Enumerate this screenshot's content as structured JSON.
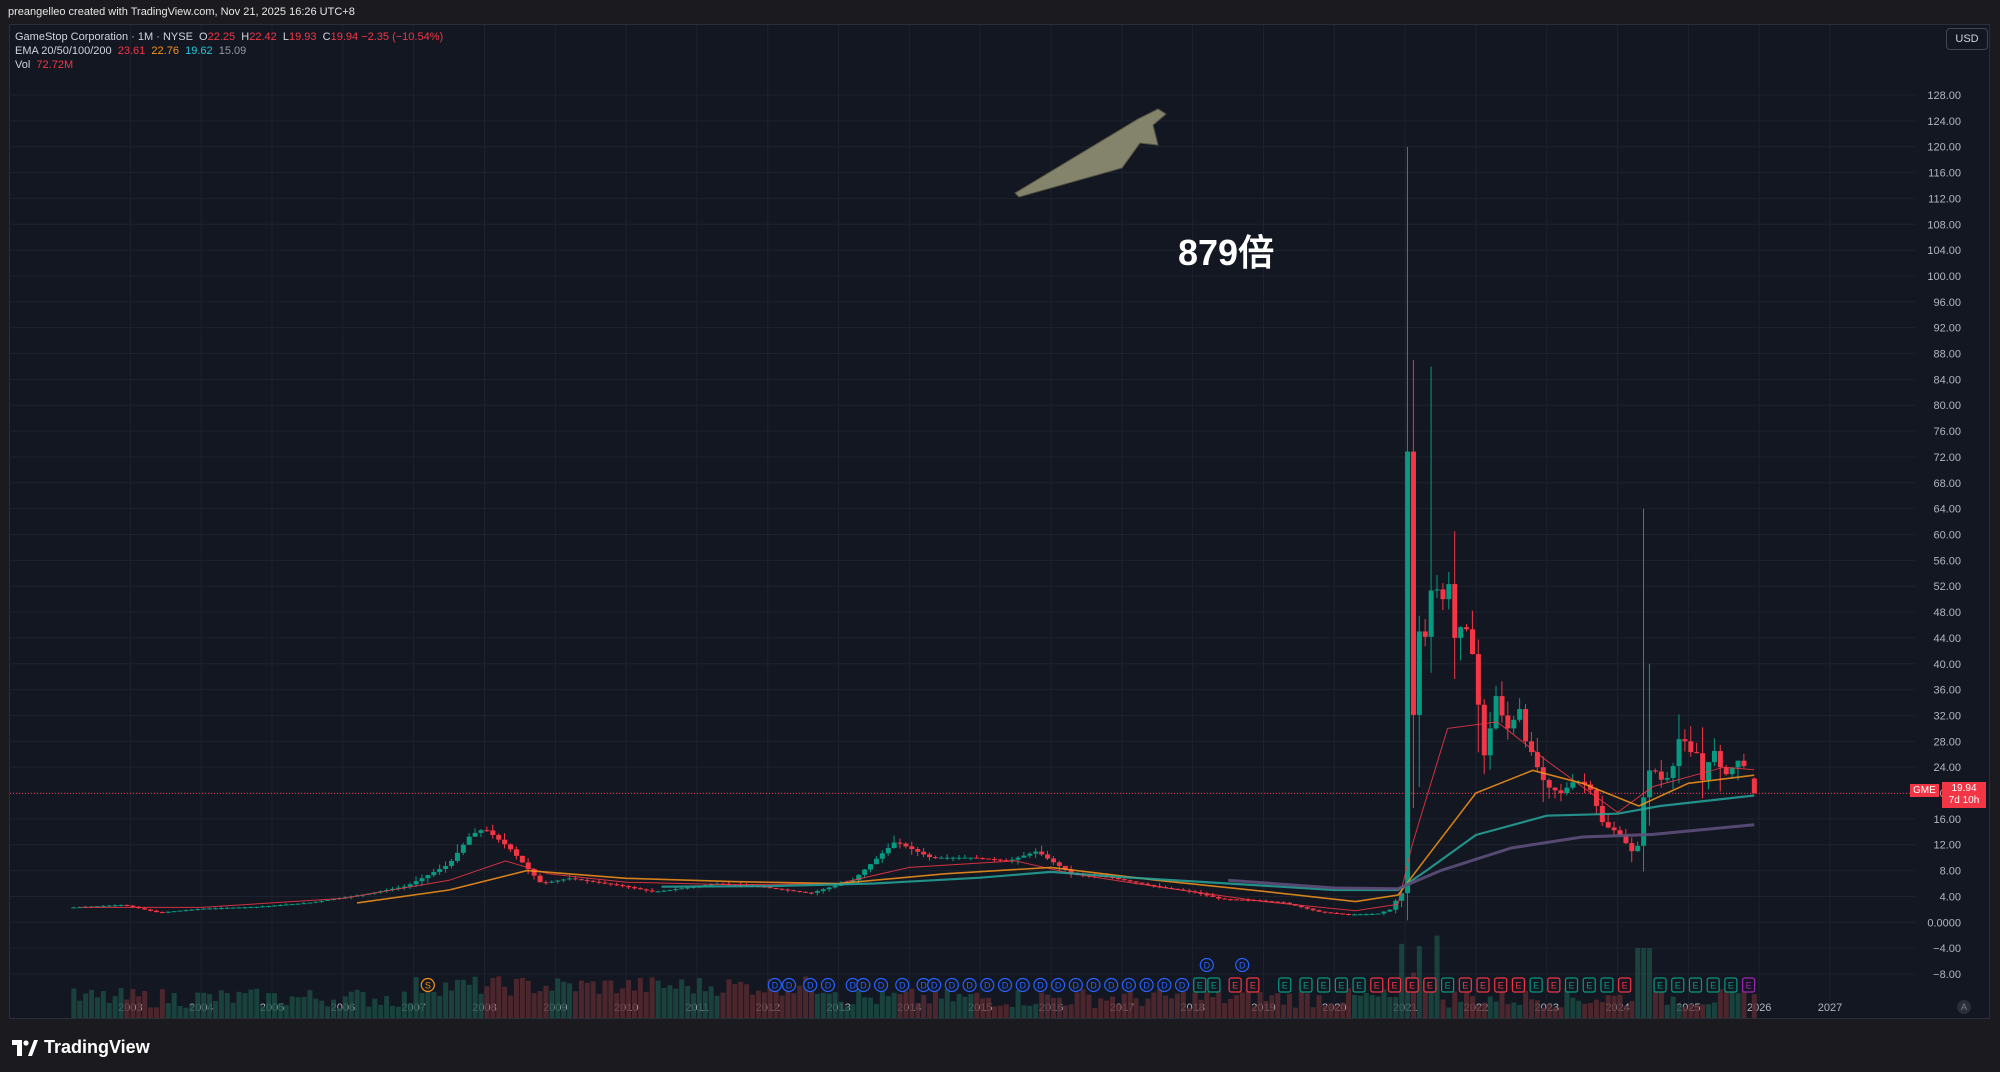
{
  "header": {
    "credit": "preangelleo created with TradingView.com, Nov 21, 2025 16:26 UTC+8"
  },
  "legend": {
    "symbol": "GameStop Corporation · 1M · NYSE",
    "o_label": "O",
    "o": "22.25",
    "h_label": "H",
    "h": "22.42",
    "l_label": "L",
    "l": "19.93",
    "c_label": "C",
    "c": "19.94",
    "change": "−2.35 (−10.54%)",
    "ema_label": "EMA 20/50/100/200",
    "ema20": "23.61",
    "ema50": "22.76",
    "ema100": "19.62",
    "ema200": "15.09",
    "vol_label": "Vol",
    "vol": "72.72M"
  },
  "currency": "USD",
  "ticker_label": "GME",
  "last_price": "19.94",
  "countdown": "7d 10h",
  "annotation": "879倍",
  "brand": "TradingView",
  "scale_button": "A",
  "colors": {
    "up": "#089981",
    "down": "#f23645",
    "ema20": "#f23645",
    "ema50": "#f7931a",
    "ema100": "#26a69a",
    "ema200": "#5d4f7a",
    "arrow": "#8b8970",
    "event_d": "#2962ff",
    "event_e_up": "#089981",
    "event_e_down": "#f23645",
    "event_s": "#f7931a",
    "event_e_next": "#9c27b0"
  },
  "chart_data": {
    "type": "candlestick",
    "title": "GameStop Corporation · 1M · NYSE",
    "xlabel": "",
    "ylabel": "",
    "x_ticks": [
      "2003",
      "2004",
      "2005",
      "2006",
      "2007",
      "2008",
      "2009",
      "2010",
      "2011",
      "2012",
      "2013",
      "2014",
      "2015",
      "2016",
      "2017",
      "2018",
      "2019",
      "2020",
      "2021",
      "2022",
      "2023",
      "2024",
      "2025",
      "2026",
      "2027"
    ],
    "y_ticks": [
      "128.00",
      "124.00",
      "120.00",
      "116.00",
      "112.00",
      "108.00",
      "104.00",
      "100.00",
      "96.00",
      "92.00",
      "88.00",
      "84.00",
      "80.00",
      "76.00",
      "72.00",
      "68.00",
      "64.00",
      "60.00",
      "56.00",
      "52.00",
      "48.00",
      "44.00",
      "40.00",
      "36.00",
      "32.00",
      "28.00",
      "24.00",
      "20.00",
      "16.00",
      "12.00",
      "8.00",
      "4.00",
      "0.0000",
      "−4.00",
      "−8.00"
    ],
    "ylim": [
      -10,
      131
    ],
    "xlim": [
      2001.3,
      2028.2
    ],
    "grid": true,
    "anchors": [
      [
        2002.2,
        2.3
      ],
      [
        2002.9,
        2.7
      ],
      [
        2003.4,
        1.5
      ],
      [
        2004.0,
        2.1
      ],
      [
        2004.8,
        2.4
      ],
      [
        2005.5,
        3.0
      ],
      [
        2006.3,
        4.3
      ],
      [
        2006.9,
        5.6
      ],
      [
        2007.5,
        9.0
      ],
      [
        2007.8,
        13.5
      ],
      [
        2008.0,
        14.5
      ],
      [
        2008.35,
        11.5
      ],
      [
        2008.8,
        6.0
      ],
      [
        2009.2,
        6.8
      ],
      [
        2009.9,
        5.7
      ],
      [
        2010.4,
        4.7
      ],
      [
        2011.3,
        6.0
      ],
      [
        2011.9,
        5.5
      ],
      [
        2012.6,
        4.5
      ],
      [
        2013.2,
        6.5
      ],
      [
        2013.8,
        12.5
      ],
      [
        2014.3,
        10.0
      ],
      [
        2014.9,
        10.0
      ],
      [
        2015.4,
        9.5
      ],
      [
        2015.8,
        11.0
      ],
      [
        2016.0,
        9.5
      ],
      [
        2016.3,
        7.5
      ],
      [
        2016.8,
        7.0
      ],
      [
        2017.5,
        5.5
      ],
      [
        2018.0,
        4.7
      ],
      [
        2018.4,
        3.6
      ],
      [
        2018.9,
        3.4
      ],
      [
        2019.3,
        3.0
      ],
      [
        2019.8,
        1.6
      ],
      [
        2020.2,
        1.2
      ],
      [
        2020.6,
        1.3
      ],
      [
        2020.8,
        2.0
      ],
      [
        2020.9,
        4.0
      ],
      [
        2020.97,
        4.7
      ],
      [
        2021.04,
        80.0
      ],
      [
        2021.12,
        30.0
      ],
      [
        2021.2,
        45.0
      ],
      [
        2021.3,
        44.0
      ],
      [
        2021.4,
        55.0
      ],
      [
        2021.5,
        48.0
      ],
      [
        2021.6,
        54.0
      ],
      [
        2021.7,
        44.0
      ],
      [
        2021.8,
        46.0
      ],
      [
        2021.9,
        45.0
      ],
      [
        2022.0,
        38.0
      ],
      [
        2022.1,
        25.0
      ],
      [
        2022.2,
        30.0
      ],
      [
        2022.3,
        36.0
      ],
      [
        2022.4,
        30.0
      ],
      [
        2022.5,
        30.0
      ],
      [
        2022.6,
        34.0
      ],
      [
        2022.7,
        28.0
      ],
      [
        2022.8,
        26.0
      ],
      [
        2022.9,
        23.0
      ],
      [
        2023.0,
        21.0
      ],
      [
        2023.2,
        20.0
      ],
      [
        2023.4,
        22.0
      ],
      [
        2023.6,
        21.0
      ],
      [
        2023.8,
        15.0
      ],
      [
        2024.0,
        14.0
      ],
      [
        2024.2,
        11.0
      ],
      [
        2024.3,
        12.0
      ],
      [
        2024.4,
        23.0
      ],
      [
        2024.5,
        24.0
      ],
      [
        2024.6,
        22.0
      ],
      [
        2024.75,
        22.5
      ],
      [
        2024.9,
        30.0
      ],
      [
        2025.0,
        26.0
      ],
      [
        2025.1,
        27.0
      ],
      [
        2025.2,
        22.0
      ],
      [
        2025.35,
        27.0
      ],
      [
        2025.5,
        22.5
      ],
      [
        2025.7,
        25.0
      ],
      [
        2025.8,
        24.0
      ],
      [
        2025.88,
        22.25
      ],
      [
        2025.93,
        19.94
      ]
    ],
    "spikes": [
      [
        2021.04,
        120.0,
        1.9
      ],
      [
        2021.12,
        87.0,
        22.0
      ],
      [
        2021.4,
        86.0,
        40.0
      ],
      [
        2024.38,
        64.0,
        10.0
      ],
      [
        2024.46,
        40.0,
        20.0
      ]
    ],
    "last": {
      "open": 22.25,
      "high": 22.42,
      "low": 19.93,
      "close": 19.94
    },
    "ema_series": [
      {
        "name": "EMA 20",
        "points": [
          [
            2002.3,
            2.3
          ],
          [
            2004,
            2.3
          ],
          [
            2006,
            3.7
          ],
          [
            2007.5,
            6.5
          ],
          [
            2008.3,
            9.5
          ],
          [
            2008.9,
            7.5
          ],
          [
            2010,
            6.2
          ],
          [
            2011.5,
            5.8
          ],
          [
            2013,
            6.0
          ],
          [
            2014,
            8.5
          ],
          [
            2015.5,
            9.5
          ],
          [
            2016.3,
            7.5
          ],
          [
            2017.5,
            5.5
          ],
          [
            2019,
            3.2
          ],
          [
            2020.3,
            1.8
          ],
          [
            2020.9,
            2.8
          ],
          [
            2021.1,
            12.0
          ],
          [
            2021.6,
            30.0
          ],
          [
            2022.3,
            31.0
          ],
          [
            2023.0,
            25.0
          ],
          [
            2024.0,
            17.0
          ],
          [
            2024.5,
            21.0
          ],
          [
            2025.5,
            24.0
          ],
          [
            2025.93,
            23.61
          ]
        ]
      },
      {
        "name": "EMA 50",
        "points": [
          [
            2006.2,
            3.0
          ],
          [
            2007.5,
            5.0
          ],
          [
            2008.6,
            8.0
          ],
          [
            2010,
            6.8
          ],
          [
            2011.5,
            6.3
          ],
          [
            2013,
            6.0
          ],
          [
            2014.5,
            7.5
          ],
          [
            2016,
            8.5
          ],
          [
            2017.5,
            6.5
          ],
          [
            2019,
            4.8
          ],
          [
            2020.3,
            3.2
          ],
          [
            2020.9,
            4.2
          ],
          [
            2021.3,
            10.0
          ],
          [
            2022.0,
            20.0
          ],
          [
            2022.8,
            23.5
          ],
          [
            2023.5,
            21.5
          ],
          [
            2024.3,
            18.0
          ],
          [
            2025.0,
            21.5
          ],
          [
            2025.93,
            22.76
          ]
        ]
      },
      {
        "name": "EMA 100",
        "points": [
          [
            2010.5,
            5.5
          ],
          [
            2012,
            5.6
          ],
          [
            2013.5,
            6.0
          ],
          [
            2015,
            6.9
          ],
          [
            2016,
            7.8
          ],
          [
            2017,
            7.0
          ],
          [
            2018.5,
            6.0
          ],
          [
            2020,
            5.0
          ],
          [
            2020.9,
            5.0
          ],
          [
            2021.3,
            8.0
          ],
          [
            2022.0,
            13.5
          ],
          [
            2023.0,
            16.5
          ],
          [
            2024.0,
            16.8
          ],
          [
            2024.6,
            18.0
          ],
          [
            2025.93,
            19.62
          ]
        ]
      },
      {
        "name": "EMA 200",
        "points": [
          [
            2018.5,
            6.5
          ],
          [
            2020,
            5.3
          ],
          [
            2020.9,
            5.2
          ],
          [
            2021.5,
            8.0
          ],
          [
            2022.5,
            11.5
          ],
          [
            2023.5,
            13.2
          ],
          [
            2024.5,
            13.6
          ],
          [
            2025.93,
            15.09
          ]
        ]
      }
    ],
    "event_markers": {
      "dividends": [
        2012.1,
        2012.3,
        2012.6,
        2012.85,
        2013.2,
        2013.35,
        2013.6,
        2013.9,
        2014.2,
        2014.35,
        2014.6,
        2014.85,
        2015.1,
        2015.35,
        2015.6,
        2015.85,
        2016.1,
        2016.35,
        2016.6,
        2016.85,
        2017.1,
        2017.35,
        2017.6,
        2017.85
      ],
      "dividends_upper": [
        2018.2,
        2018.7
      ],
      "earnings_up": [
        2018.1,
        2018.3,
        2019.3,
        2019.6,
        2019.85,
        2020.1,
        2020.35,
        2021.6,
        2022.85,
        2023.35,
        2023.6,
        2023.85,
        2024.6,
        2024.85,
        2025.1,
        2025.35,
        2025.6
      ],
      "earnings_down": [
        2018.6,
        2018.85,
        2020.6,
        2020.85,
        2021.1,
        2021.35,
        2021.85,
        2022.1,
        2022.35,
        2022.6,
        2023.1,
        2024.1
      ],
      "split": [
        2007.2
      ],
      "earnings_next": [
        2025.85
      ]
    }
  }
}
